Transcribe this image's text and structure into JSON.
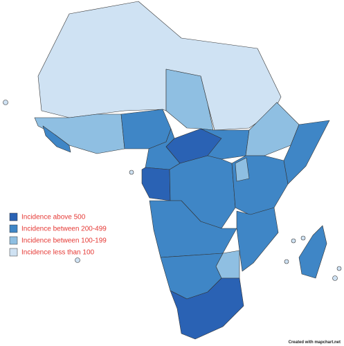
{
  "legend": {
    "items": [
      {
        "label": "Incidence above 500",
        "color": "#2a62b4"
      },
      {
        "label": "Incidence between 200-499",
        "color": "#3f86c6"
      },
      {
        "label": "Incidence between 100-199",
        "color": "#8fbfe2"
      },
      {
        "label": "Incidence less than 100",
        "color": "#cfe2f3"
      }
    ]
  },
  "credit": "Created with mapchart.net"
}
